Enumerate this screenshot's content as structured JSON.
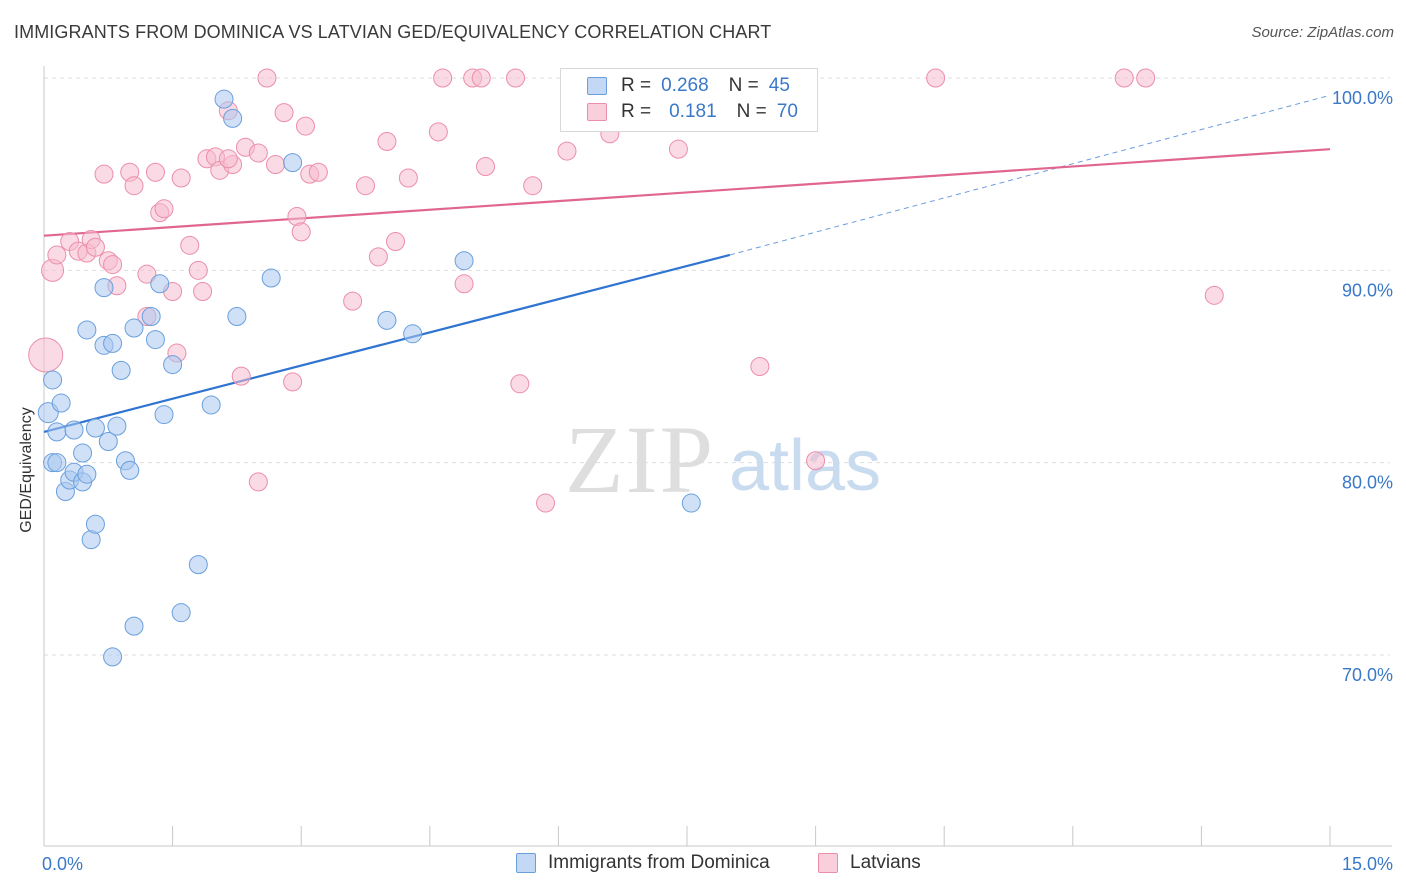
{
  "title": "IMMIGRANTS FROM DOMINICA VS LATVIAN GED/EQUIVALENCY CORRELATION CHART",
  "source": "Source: ZipAtlas.com",
  "watermark": {
    "zip": "ZIP",
    "atlas": "atlas"
  },
  "legend": {
    "rows": [
      {
        "r_label": "R =",
        "r_value": "0.268",
        "n_label": "N =",
        "n_value": "45"
      },
      {
        "r_label": "R =",
        "r_value": "0.181",
        "n_label": "N =",
        "n_value": "70"
      }
    ]
  },
  "bottom_legend": {
    "dominica": "Immigrants from Dominica",
    "latvians": "Latvians"
  },
  "colors": {
    "blue_fill": "#a9c8f0",
    "blue_stroke": "#6a9fdc",
    "blue_line": "#2f74d0",
    "pink_fill": "#f6bccd",
    "pink_stroke": "#ec8eaa",
    "pink_line": "#e06690",
    "tick_text": "#3a78c8"
  },
  "chart_data": {
    "type": "scatter",
    "title": "IMMIGRANTS FROM DOMINICA VS LATVIAN GED/EQUIVALENCY CORRELATION CHART",
    "xlabel": "",
    "ylabel": "GED/Equivalency",
    "xlim": [
      0,
      15
    ],
    "ylim": [
      60,
      100.5
    ],
    "x_tick_labels": [
      "0.0%",
      "15.0%"
    ],
    "y_ticks": [
      70,
      80,
      90,
      100
    ],
    "y_tick_labels": [
      "70.0%",
      "80.0%",
      "90.0%",
      "100.0%"
    ],
    "grid": true,
    "legend_position": "top-center",
    "series": [
      {
        "name": "Immigrants from Dominica",
        "color": "#a9c8f0",
        "trend": {
          "x": [
            0,
            8.0
          ],
          "y": [
            81.6,
            90.8
          ],
          "extended_to": [
            15,
            99.1
          ]
        },
        "points": [
          [
            0.05,
            82.6,
            10
          ],
          [
            0.1,
            84.3,
            9
          ],
          [
            0.1,
            80.0,
            9
          ],
          [
            0.2,
            83.1,
            9
          ],
          [
            0.15,
            81.6,
            9
          ],
          [
            0.25,
            78.5,
            9
          ],
          [
            0.3,
            79.1,
            9
          ],
          [
            0.35,
            79.5,
            9
          ],
          [
            0.35,
            81.7,
            9
          ],
          [
            0.45,
            80.5,
            9
          ],
          [
            0.45,
            79.0,
            9
          ],
          [
            0.5,
            86.9,
            9
          ],
          [
            0.55,
            76.0,
            9
          ],
          [
            0.6,
            76.8,
            9
          ],
          [
            0.6,
            81.8,
            9
          ],
          [
            0.75,
            81.1,
            9
          ],
          [
            0.7,
            89.1,
            9
          ],
          [
            0.7,
            86.1,
            9
          ],
          [
            0.8,
            86.2,
            9
          ],
          [
            0.85,
            81.9,
            9
          ],
          [
            0.9,
            84.8,
            9
          ],
          [
            0.95,
            80.1,
            9
          ],
          [
            1.0,
            79.6,
            9
          ],
          [
            1.05,
            71.5,
            9
          ],
          [
            1.05,
            87.0,
            9
          ],
          [
            1.25,
            87.6,
            9
          ],
          [
            1.3,
            86.4,
            9
          ],
          [
            1.35,
            89.3,
            9
          ],
          [
            1.4,
            82.5,
            9
          ],
          [
            1.5,
            85.1,
            9
          ],
          [
            1.6,
            72.2,
            9
          ],
          [
            1.8,
            74.7,
            9
          ],
          [
            1.95,
            83.0,
            9
          ],
          [
            2.1,
            98.9,
            9
          ],
          [
            2.2,
            97.9,
            9
          ],
          [
            2.25,
            87.6,
            9
          ],
          [
            2.65,
            89.6,
            9
          ],
          [
            2.9,
            95.6,
            9
          ],
          [
            4.0,
            87.4,
            9
          ],
          [
            4.3,
            86.7,
            9
          ],
          [
            4.9,
            90.5,
            9
          ],
          [
            7.55,
            77.9,
            9
          ],
          [
            0.8,
            69.9,
            9
          ],
          [
            0.5,
            79.4,
            9
          ],
          [
            0.15,
            80.0,
            9
          ]
        ]
      },
      {
        "name": "Latvians",
        "color": "#f6bccd",
        "trend": {
          "x": [
            0,
            15
          ],
          "y": [
            91.8,
            96.3
          ]
        },
        "points": [
          [
            0.02,
            85.6,
            17
          ],
          [
            0.1,
            90.0,
            11
          ],
          [
            0.15,
            90.8,
            9
          ],
          [
            0.3,
            91.5,
            9
          ],
          [
            0.4,
            91.0,
            9
          ],
          [
            0.5,
            90.9,
            9
          ],
          [
            0.55,
            91.6,
            9
          ],
          [
            0.6,
            91.2,
            9
          ],
          [
            0.7,
            95.0,
            9
          ],
          [
            0.75,
            90.5,
            9
          ],
          [
            0.8,
            90.3,
            9
          ],
          [
            0.85,
            89.2,
            9
          ],
          [
            1.0,
            95.1,
            9
          ],
          [
            1.05,
            94.4,
            9
          ],
          [
            1.2,
            87.6,
            9
          ],
          [
            1.2,
            89.8,
            9
          ],
          [
            1.3,
            95.1,
            9
          ],
          [
            1.35,
            93.0,
            9
          ],
          [
            1.4,
            93.2,
            9
          ],
          [
            1.5,
            88.9,
            9
          ],
          [
            1.55,
            85.7,
            9
          ],
          [
            1.6,
            94.8,
            9
          ],
          [
            1.7,
            91.3,
            9
          ],
          [
            1.8,
            90.0,
            9
          ],
          [
            1.85,
            88.9,
            9
          ],
          [
            1.9,
            95.8,
            9
          ],
          [
            2.0,
            95.9,
            9
          ],
          [
            2.05,
            95.2,
            9
          ],
          [
            2.15,
            98.3,
            9
          ],
          [
            2.2,
            95.5,
            9
          ],
          [
            2.3,
            84.5,
            9
          ],
          [
            2.35,
            96.4,
            9
          ],
          [
            2.5,
            96.1,
            9
          ],
          [
            2.5,
            79.0,
            9
          ],
          [
            2.6,
            100.0,
            9
          ],
          [
            2.7,
            95.5,
            9
          ],
          [
            2.8,
            98.2,
            9
          ],
          [
            2.9,
            84.2,
            9
          ],
          [
            2.95,
            92.8,
            9
          ],
          [
            3.0,
            92.0,
            9
          ],
          [
            3.05,
            97.5,
            9
          ],
          [
            3.1,
            95.0,
            9
          ],
          [
            3.2,
            95.1,
            9
          ],
          [
            3.6,
            88.4,
            9
          ],
          [
            3.75,
            94.4,
            9
          ],
          [
            3.9,
            90.7,
            9
          ],
          [
            4.0,
            96.7,
            9
          ],
          [
            4.1,
            91.5,
            9
          ],
          [
            4.25,
            94.8,
            9
          ],
          [
            4.65,
            100.0,
            9
          ],
          [
            4.6,
            97.2,
            9
          ],
          [
            4.9,
            89.3,
            9
          ],
          [
            5.0,
            100.0,
            9
          ],
          [
            5.15,
            95.4,
            9
          ],
          [
            5.5,
            100.0,
            9
          ],
          [
            5.55,
            84.1,
            9
          ],
          [
            5.7,
            94.4,
            9
          ],
          [
            5.85,
            77.9,
            9
          ],
          [
            6.1,
            96.2,
            9
          ],
          [
            6.6,
            97.1,
            9
          ],
          [
            7.4,
            96.3,
            9
          ],
          [
            8.0,
            100.0,
            9
          ],
          [
            8.35,
            85.0,
            9
          ],
          [
            9.0,
            80.1,
            9
          ],
          [
            10.4,
            100.0,
            9
          ],
          [
            12.6,
            100.0,
            9
          ],
          [
            12.85,
            100.0,
            9
          ],
          [
            13.65,
            88.7,
            9
          ],
          [
            5.1,
            100.0,
            9
          ],
          [
            2.15,
            95.8,
            9
          ]
        ]
      }
    ]
  }
}
